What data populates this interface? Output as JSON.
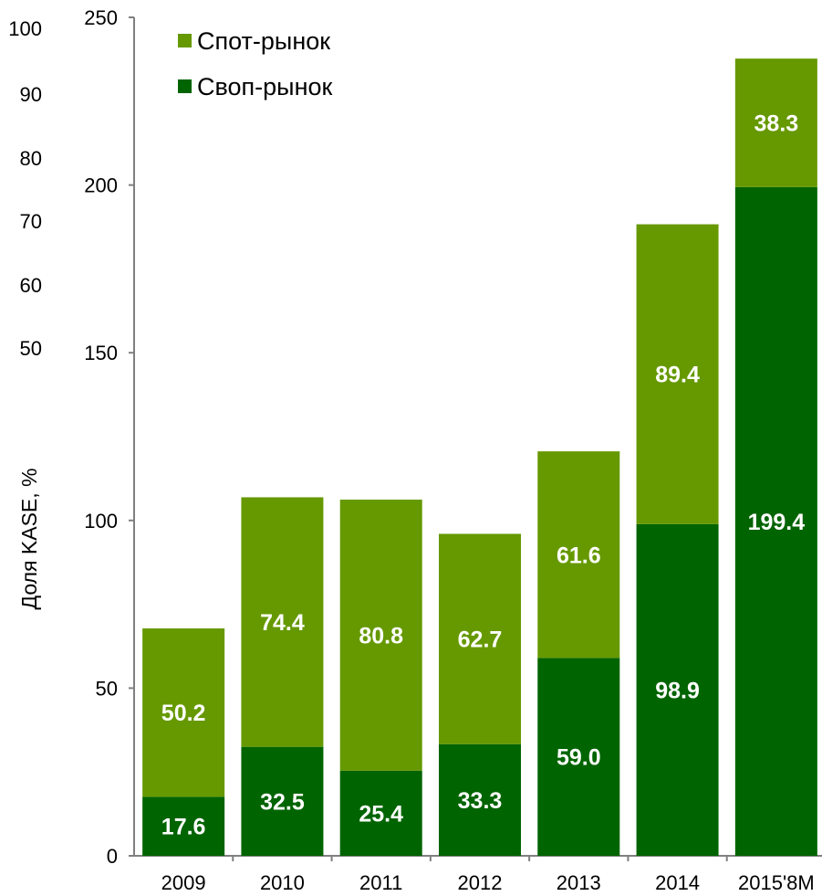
{
  "chart_data": {
    "type": "bar",
    "stacked": true,
    "categories": [
      "2009",
      "2010",
      "2011",
      "2012",
      "2013",
      "2014",
      "2015'8M"
    ],
    "series": [
      {
        "name": "Своп-рынок",
        "values": [
          17.6,
          32.5,
          25.4,
          33.3,
          59.0,
          98.9,
          199.4
        ],
        "color": "#006400",
        "labels": [
          "17.6",
          "32.5",
          "25.4",
          "33.3",
          "59.0",
          "98.9",
          "199.4"
        ]
      },
      {
        "name": "Спот-рынок",
        "values": [
          50.2,
          74.4,
          80.8,
          62.7,
          61.6,
          89.4,
          38.3
        ],
        "color": "#669900",
        "labels": [
          "50.2",
          "74.4",
          "80.8",
          "62.7",
          "61.6",
          "89.4",
          "38.3"
        ]
      }
    ],
    "ylim": [
      0,
      250
    ],
    "yticks": [
      "0",
      "50",
      "100",
      "150",
      "200",
      "250"
    ],
    "secondary_ticks": [
      "100",
      "90",
      "80",
      "70",
      "60",
      "50"
    ],
    "ylabel": "Доля KASE, %",
    "xlabel": "",
    "title": "",
    "legend": {
      "placement": "top-left",
      "order": [
        "Спот-рынок",
        "Своп-рынок"
      ]
    },
    "grid": false
  }
}
